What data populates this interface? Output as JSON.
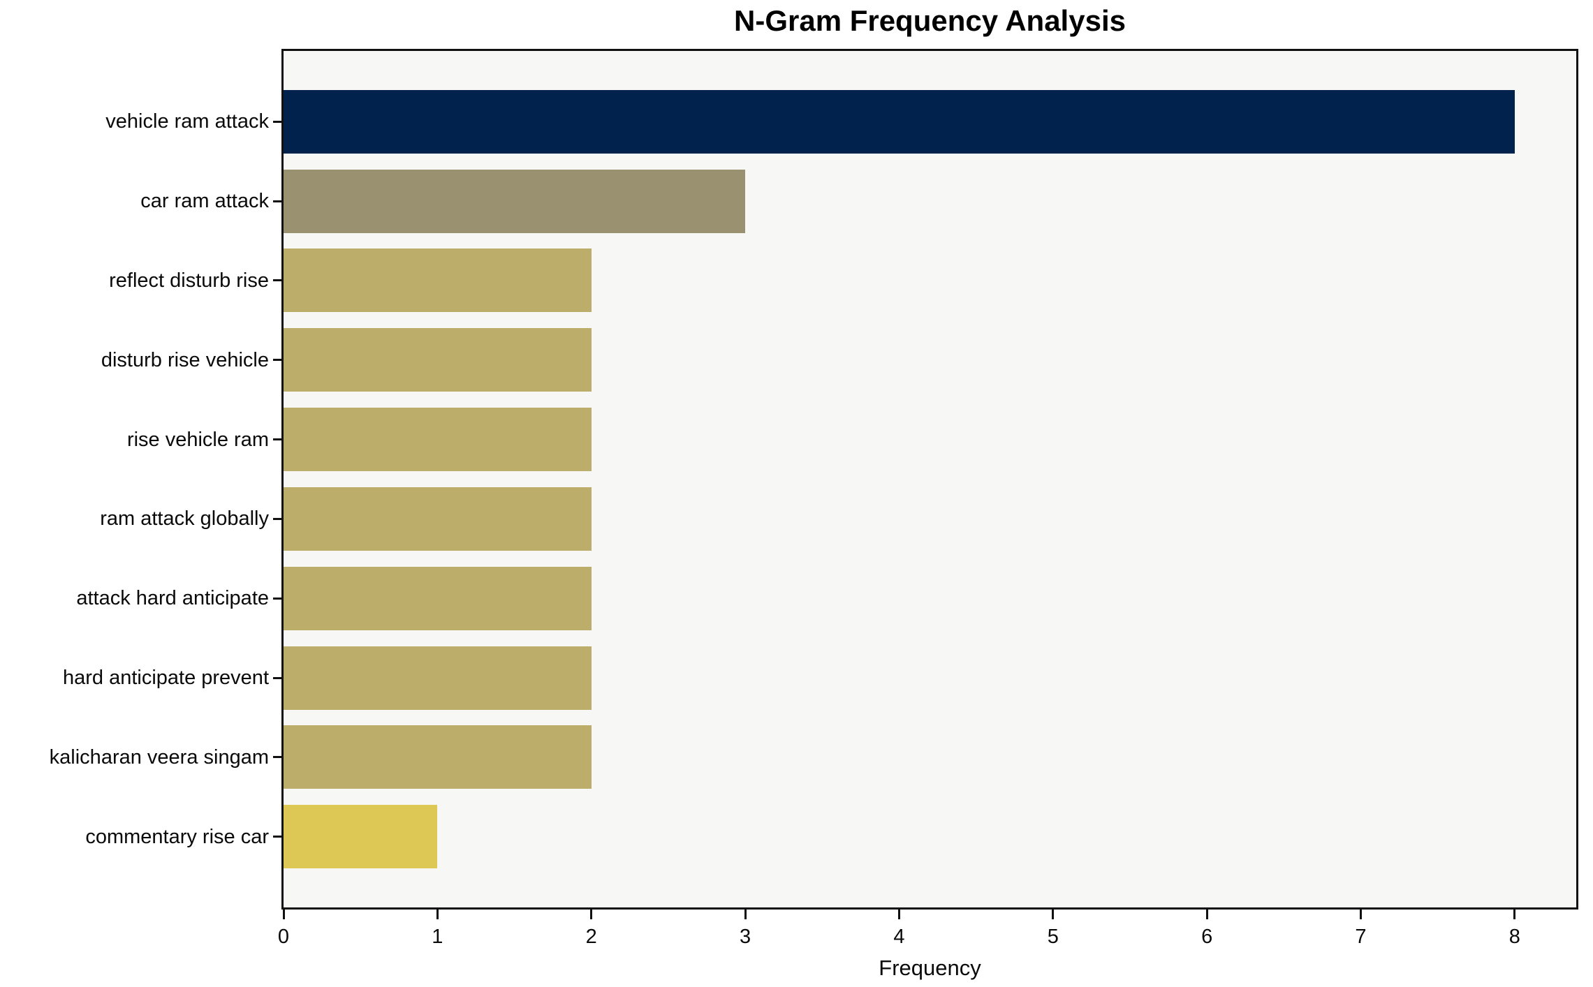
{
  "chart_data": {
    "type": "bar",
    "orientation": "horizontal",
    "title": "N-Gram Frequency Analysis",
    "xlabel": "Frequency",
    "ylabel": "",
    "categories": [
      "vehicle ram attack",
      "car ram attack",
      "reflect disturb rise",
      "disturb rise vehicle",
      "rise vehicle ram",
      "ram attack globally",
      "attack hard anticipate",
      "hard anticipate prevent",
      "kalicharan veera singam",
      "commentary rise car"
    ],
    "values": [
      8,
      3,
      2,
      2,
      2,
      2,
      2,
      2,
      2,
      1
    ],
    "bar_colors": [
      "#01224d",
      "#99916f",
      "#bcad6b",
      "#bcad6b",
      "#bcad6b",
      "#bcad6b",
      "#bcad6b",
      "#bcad6b",
      "#bcad6b",
      "#ddc755"
    ],
    "xlim": [
      0,
      8.4
    ],
    "xticks": [
      0,
      1,
      2,
      3,
      4,
      5,
      6,
      7,
      8
    ],
    "grid": false,
    "legend": null,
    "colors": {
      "plot_background": "#f7f7f6",
      "figure_background": "#ffffff",
      "spine": "#111111",
      "text": "#0a0a0a"
    }
  }
}
